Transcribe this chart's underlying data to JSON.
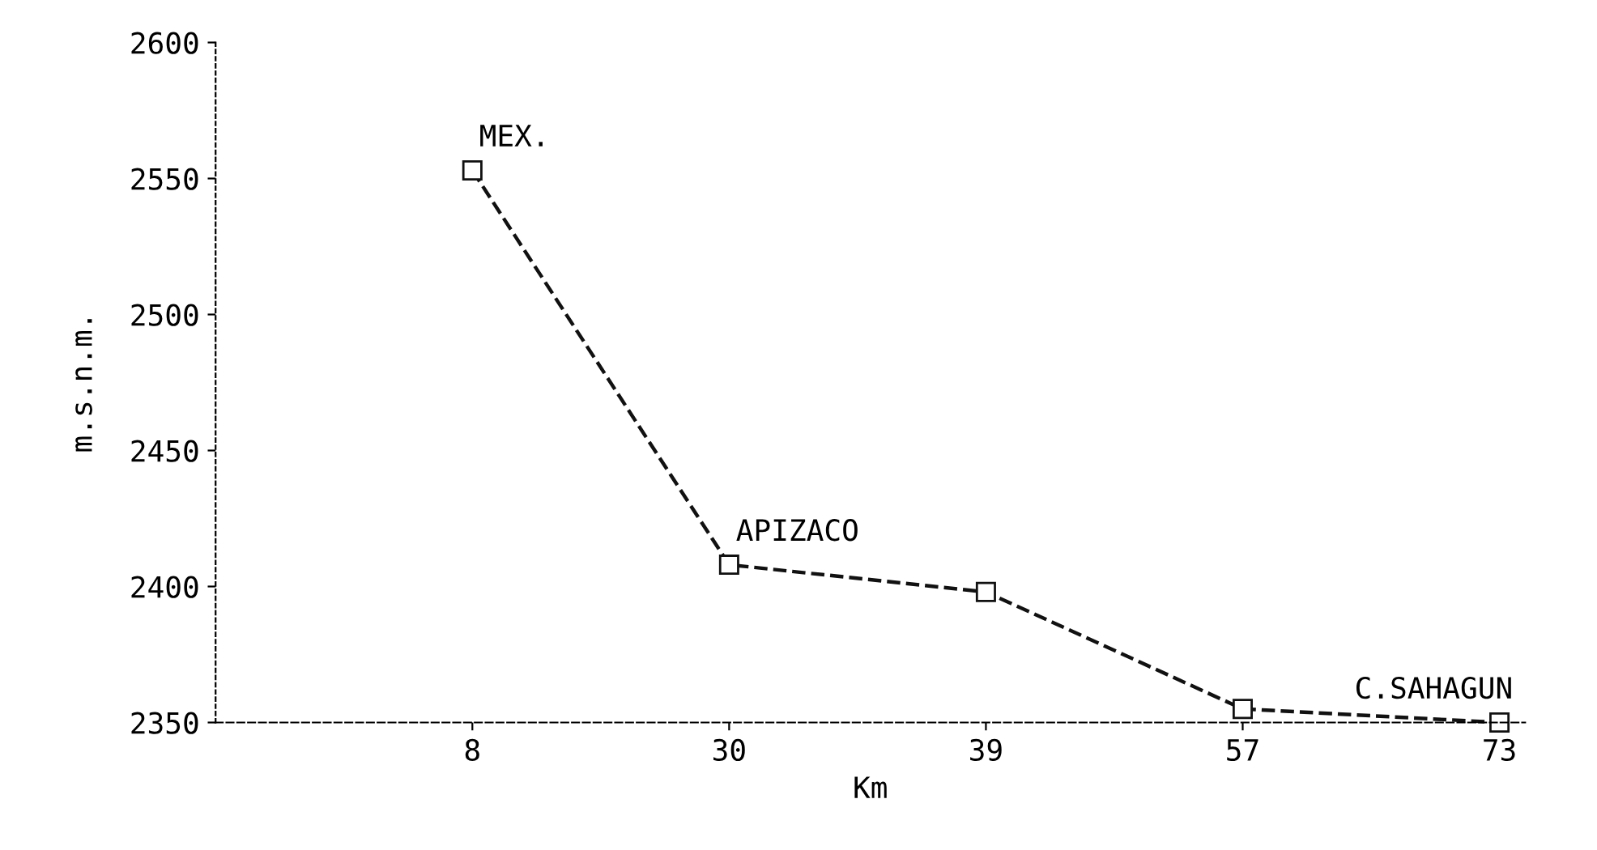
{
  "chart_data": {
    "type": "line",
    "xlabel": "Km",
    "ylabel": "m.s.n.m.",
    "categories": [
      "8",
      "30",
      "39",
      "57",
      "73"
    ],
    "values": [
      2553,
      2408,
      2398,
      2355,
      2350
    ],
    "color": "#111111",
    "marker": "square",
    "line_style": "dashed",
    "grid": false,
    "legend": false,
    "ylim": [
      2350,
      2600
    ],
    "yticks": [
      2350,
      2400,
      2450,
      2500,
      2550,
      2600
    ],
    "annotations": [
      {
        "text": "MEX.",
        "x": "8",
        "y": 2553
      },
      {
        "text": "APIZACO",
        "x": "30",
        "y": 2408
      },
      {
        "text": "C.SAHAGUN",
        "x": "73",
        "y": 2350
      }
    ]
  }
}
